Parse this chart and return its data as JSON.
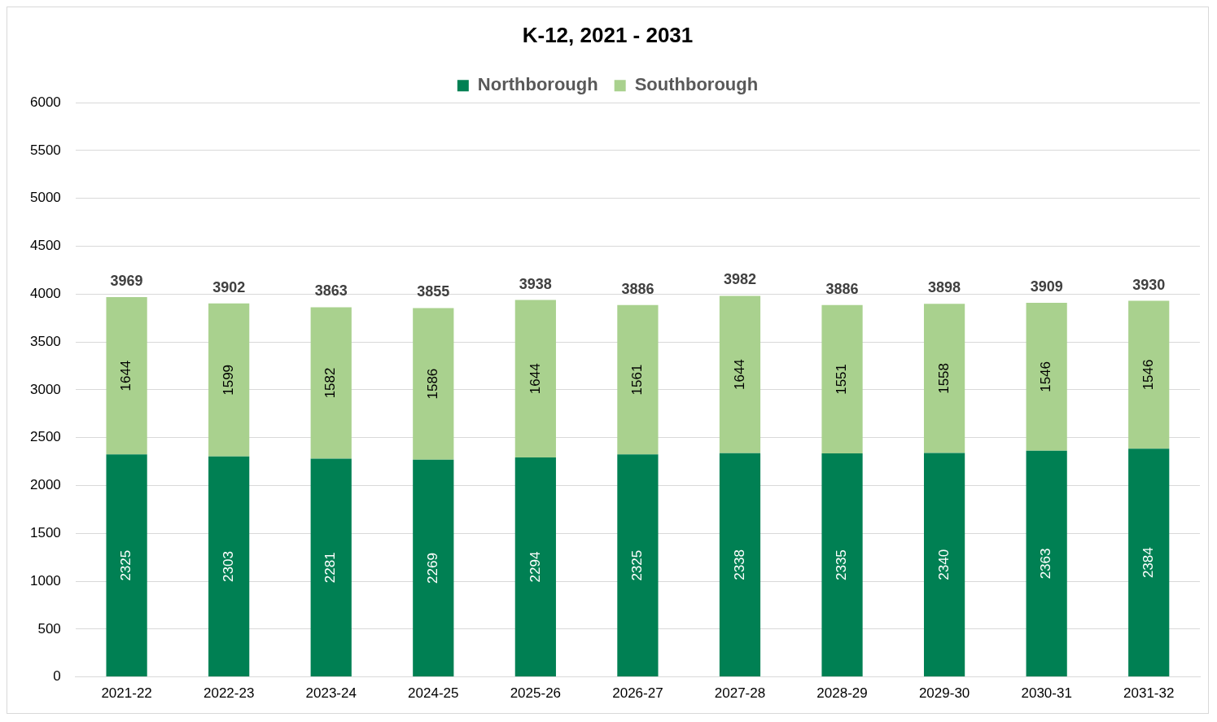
{
  "chart_data": {
    "type": "bar",
    "title": "K-12, 2021 - 2031",
    "stacked": true,
    "categories": [
      "2021-22",
      "2022-23",
      "2023-24",
      "2024-25",
      "2025-26",
      "2026-27",
      "2027-28",
      "2028-29",
      "2029-30",
      "2030-31",
      "2031-32"
    ],
    "series": [
      {
        "name": "Northborough",
        "color": "#008053",
        "values": [
          2325,
          2303,
          2281,
          2269,
          2294,
          2325,
          2338,
          2335,
          2340,
          2363,
          2384
        ]
      },
      {
        "name": "Southborough",
        "color": "#a9d18e",
        "values": [
          1644,
          1599,
          1582,
          1586,
          1644,
          1561,
          1644,
          1551,
          1558,
          1546,
          1546
        ]
      }
    ],
    "totals": [
      "3969",
      "3902",
      "3863",
      "3855",
      "3938",
      "3886",
      "3982",
      "3886",
      "3898",
      "3909",
      "3930"
    ],
    "data_labels": true,
    "ylim": [
      0,
      6000
    ],
    "yticks": [
      0,
      500,
      1000,
      1500,
      2000,
      2500,
      3000,
      3500,
      4000,
      4500,
      5000,
      5500,
      6000
    ],
    "grid": "y",
    "legend": "top"
  }
}
